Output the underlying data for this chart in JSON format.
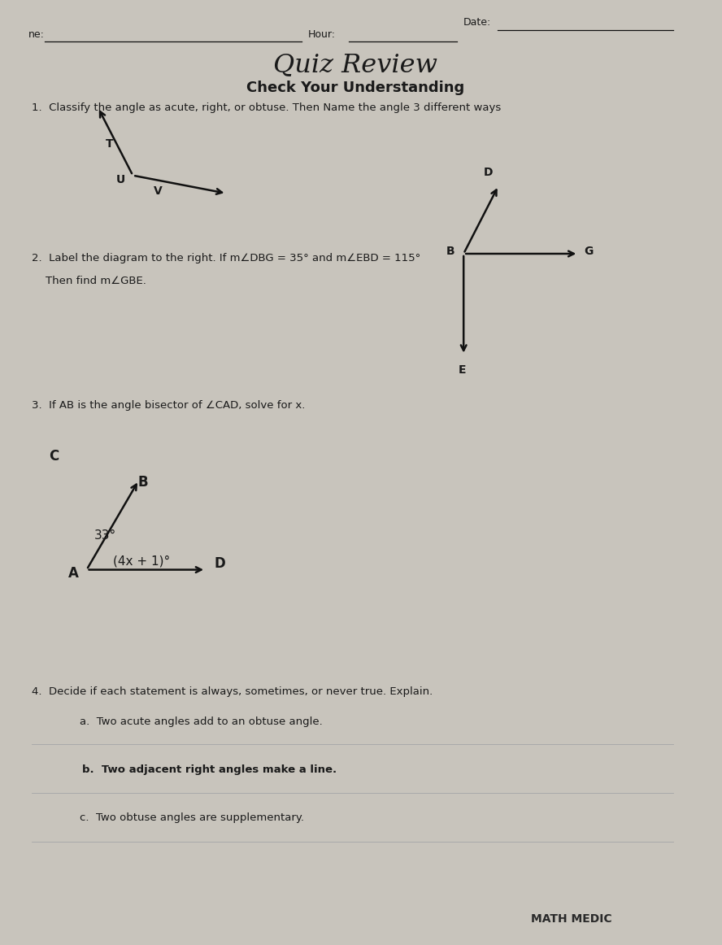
{
  "bg_color": "#c8c4bc",
  "paper_color": "#edecea",
  "title": "Quiz Review",
  "subtitle": "Check Your Understanding",
  "header_date": "Date:",
  "header_hour": "Hour:",
  "header_name": "ne:",
  "q1_text": "1.  Classify the angle as acute, right, or obtuse. Then Name the angle 3 different ways",
  "q2_text": "2.  Label the diagram to the right. If m∠DBG = 35° and m∠EBD = 115°",
  "q2_text2": "    Then find m∠GBE.",
  "q3_text": "3.  If AB is the angle bisector of ∠CAD, solve for x.",
  "q4_text": "4.  Decide if each statement is always, sometimes, or never true. Explain.",
  "q4a": "        a.  Two acute angles add to an obtuse angle.",
  "q4b": "        b.  Two adjacent right angles make a line.",
  "q4c": "        c.  Two obtuse angles are supplementary.",
  "watermark": "MATH MEDIC",
  "text_color": "#1a1a1a",
  "line_color": "#111111"
}
